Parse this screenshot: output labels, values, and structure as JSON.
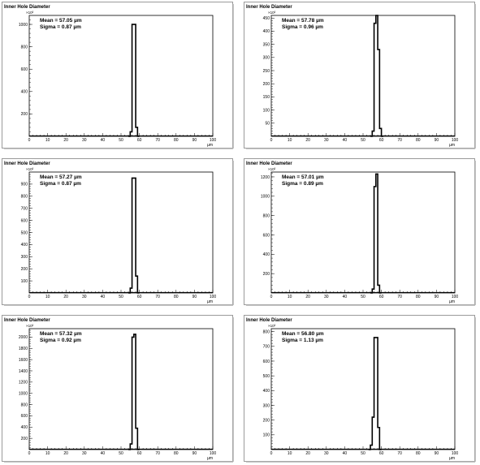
{
  "chart_data": [
    {
      "type": "line",
      "title": "Inner Hole Diameter",
      "xlabel": "µm",
      "ylabel": "",
      "xlim": [
        0,
        100
      ],
      "ylim": [
        0,
        1080
      ],
      "x_ticks": [
        0,
        10,
        20,
        30,
        40,
        50,
        60,
        70,
        80,
        90,
        100
      ],
      "y_ticks": [
        200,
        400,
        600,
        800,
        1000
      ],
      "y_multiplier": "×10³",
      "stats": {
        "mean": "Mean = 57.05 µm",
        "sigma": "Sigma = 0.87 µm"
      },
      "x": [
        54,
        55,
        56,
        57,
        58,
        59
      ],
      "values": [
        0,
        40,
        1000,
        1000,
        80,
        0
      ]
    },
    {
      "type": "line",
      "title": "Inner Hole Diameter",
      "xlabel": "µm",
      "ylabel": "",
      "xlim": [
        0,
        100
      ],
      "ylim": [
        0,
        460
      ],
      "x_ticks": [
        0,
        10,
        20,
        30,
        40,
        50,
        60,
        70,
        80,
        90,
        100
      ],
      "y_ticks": [
        50,
        100,
        150,
        200,
        250,
        300,
        350,
        400,
        450
      ],
      "y_multiplier": "×10³",
      "stats": {
        "mean": "Mean = 57.78 µm",
        "sigma": "Sigma = 0.96 µm"
      },
      "x": [
        54,
        55,
        56,
        57,
        58,
        59,
        60
      ],
      "values": [
        0,
        20,
        430,
        460,
        330,
        30,
        0
      ]
    },
    {
      "type": "line",
      "title": "Inner Hole Diameter",
      "xlabel": "µm",
      "ylabel": "",
      "xlim": [
        0,
        100
      ],
      "ylim": [
        0,
        1000
      ],
      "x_ticks": [
        0,
        10,
        20,
        30,
        40,
        50,
        60,
        70,
        80,
        90,
        100
      ],
      "y_ticks": [
        100,
        200,
        300,
        400,
        500,
        600,
        700,
        800,
        900
      ],
      "y_multiplier": "×10³",
      "stats": {
        "mean": "Mean = 57.27 µm",
        "sigma": "Sigma = 0.87 µm"
      },
      "x": [
        54,
        55,
        56,
        57,
        58,
        59
      ],
      "values": [
        0,
        40,
        950,
        950,
        140,
        0
      ]
    },
    {
      "type": "line",
      "title": "Inner Hole Diameter",
      "xlabel": "µm",
      "ylabel": "",
      "xlim": [
        0,
        100
      ],
      "ylim": [
        0,
        1250
      ],
      "x_ticks": [
        0,
        10,
        20,
        30,
        40,
        50,
        60,
        70,
        80,
        90,
        100
      ],
      "y_ticks": [
        200,
        400,
        600,
        800,
        1000,
        1200
      ],
      "y_multiplier": "×10³",
      "stats": {
        "mean": "Mean = 57.01 µm",
        "sigma": "Sigma = 0.89 µm"
      },
      "x": [
        54,
        55,
        56,
        57,
        58,
        59
      ],
      "values": [
        0,
        40,
        1100,
        1230,
        80,
        0
      ]
    },
    {
      "type": "line",
      "title": "Inner Hole Diameter",
      "xlabel": "µm",
      "ylabel": "",
      "xlim": [
        0,
        100
      ],
      "ylim": [
        0,
        2150
      ],
      "x_ticks": [
        0,
        10,
        20,
        30,
        40,
        50,
        60,
        70,
        80,
        90,
        100
      ],
      "y_ticks": [
        200,
        400,
        600,
        800,
        1000,
        1200,
        1400,
        1600,
        1800,
        2000
      ],
      "y_multiplier": "×10³",
      "stats": {
        "mean": "Mean = 57.32 µm",
        "sigma": "Sigma = 0.92 µm"
      },
      "x": [
        54,
        55,
        56,
        57,
        58,
        59
      ],
      "values": [
        0,
        100,
        2000,
        2050,
        380,
        0
      ]
    },
    {
      "type": "line",
      "title": "Inner Hole Diameter",
      "xlabel": "µm",
      "ylabel": "",
      "xlim": [
        0,
        100
      ],
      "ylim": [
        0,
        820
      ],
      "x_ticks": [
        0,
        10,
        20,
        30,
        40,
        50,
        60,
        70,
        80,
        90,
        100
      ],
      "y_ticks": [
        100,
        200,
        300,
        400,
        500,
        600,
        700,
        800
      ],
      "y_multiplier": "×10³",
      "stats": {
        "mean": "Mean = 56.80 µm",
        "sigma": "Sigma = 1.13 µm"
      },
      "x": [
        53,
        54,
        55,
        56,
        57,
        58,
        59
      ],
      "values": [
        0,
        30,
        220,
        760,
        760,
        150,
        0
      ]
    }
  ]
}
